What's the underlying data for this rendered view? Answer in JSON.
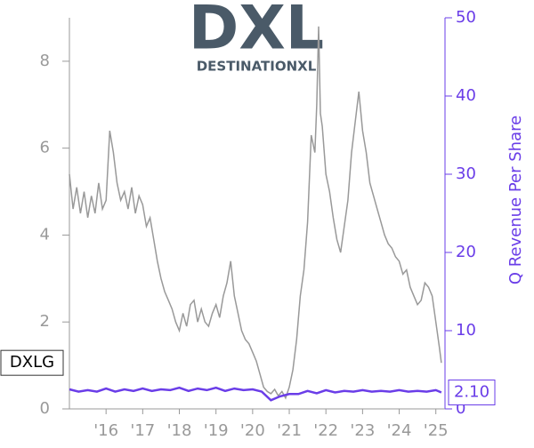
{
  "chart_data": {
    "type": "line",
    "logo": {
      "mark": "DXL",
      "name": "DESTINATIONXL"
    },
    "ticker": "DXLG",
    "y2label": "Q Revenue Per Share",
    "xlim": [
      2015.0,
      2025.25
    ],
    "xticks": [
      {
        "value": 2016,
        "label": "'16"
      },
      {
        "value": 2017,
        "label": "'17"
      },
      {
        "value": 2018,
        "label": "'18"
      },
      {
        "value": 2019,
        "label": "'19"
      },
      {
        "value": 2020,
        "label": "'20"
      },
      {
        "value": 2021,
        "label": "'21"
      },
      {
        "value": 2022,
        "label": "'22"
      },
      {
        "value": 2023,
        "label": "'23"
      },
      {
        "value": 2024,
        "label": "'24"
      },
      {
        "value": 2025,
        "label": "'25"
      }
    ],
    "ylim": [
      0,
      9
    ],
    "yticks": [
      0,
      2,
      4,
      6,
      8
    ],
    "y2lim": [
      0,
      50
    ],
    "y2ticks": [
      0,
      10,
      20,
      30,
      40,
      50
    ],
    "series": [
      {
        "color": "#999999",
        "x": [
          2015.0,
          2015.1,
          2015.2,
          2015.3,
          2015.4,
          2015.5,
          2015.6,
          2015.7,
          2015.8,
          2015.9,
          2016.0,
          2016.1,
          2016.2,
          2016.3,
          2016.4,
          2016.5,
          2016.6,
          2016.7,
          2016.8,
          2016.9,
          2017.0,
          2017.1,
          2017.2,
          2017.3,
          2017.4,
          2017.5,
          2017.6,
          2017.7,
          2017.8,
          2017.9,
          2018.0,
          2018.1,
          2018.2,
          2018.3,
          2018.4,
          2018.5,
          2018.6,
          2018.7,
          2018.8,
          2018.9,
          2019.0,
          2019.1,
          2019.2,
          2019.3,
          2019.4,
          2019.5,
          2019.6,
          2019.7,
          2019.8,
          2019.9,
          2020.0,
          2020.1,
          2020.2,
          2020.3,
          2020.4,
          2020.5,
          2020.6,
          2020.7,
          2020.8,
          2020.9,
          2021.0,
          2021.1,
          2021.2,
          2021.3,
          2021.4,
          2021.5,
          2021.6,
          2021.7,
          2021.75,
          2021.8,
          2021.85,
          2021.9,
          2022.0,
          2022.1,
          2022.2,
          2022.3,
          2022.4,
          2022.5,
          2022.6,
          2022.7,
          2022.8,
          2022.9,
          2023.0,
          2023.1,
          2023.2,
          2023.3,
          2023.4,
          2023.5,
          2023.6,
          2023.7,
          2023.8,
          2023.9,
          2024.0,
          2024.1,
          2024.2,
          2024.3,
          2024.4,
          2024.5,
          2024.6,
          2024.7,
          2024.8,
          2024.9,
          2025.0,
          2025.1,
          2025.15
        ],
        "values": [
          5.4,
          4.6,
          5.1,
          4.5,
          5.0,
          4.4,
          4.9,
          4.5,
          5.2,
          4.6,
          4.8,
          6.4,
          5.9,
          5.2,
          4.8,
          5.0,
          4.6,
          5.1,
          4.5,
          4.9,
          4.7,
          4.2,
          4.4,
          3.9,
          3.4,
          3.0,
          2.7,
          2.5,
          2.3,
          2.0,
          1.8,
          2.2,
          1.9,
          2.4,
          2.5,
          2.0,
          2.3,
          2.0,
          1.9,
          2.2,
          2.4,
          2.1,
          2.6,
          2.9,
          3.4,
          2.6,
          2.2,
          1.8,
          1.6,
          1.5,
          1.3,
          1.1,
          0.8,
          0.5,
          0.4,
          0.35,
          0.45,
          0.3,
          0.4,
          0.25,
          0.5,
          0.9,
          1.6,
          2.6,
          3.2,
          4.3,
          6.3,
          5.9,
          7.0,
          8.8,
          6.8,
          6.5,
          5.4,
          5.0,
          4.4,
          3.9,
          3.6,
          4.2,
          4.8,
          5.9,
          6.6,
          7.3,
          6.4,
          5.9,
          5.2,
          4.9,
          4.6,
          4.3,
          4.0,
          3.8,
          3.7,
          3.5,
          3.4,
          3.1,
          3.2,
          2.8,
          2.6,
          2.4,
          2.5,
          2.9,
          2.8,
          2.6,
          2.0,
          1.4,
          1.06
        ]
      },
      {
        "color": "#6a3de8",
        "axis": "y2",
        "x": [
          2015.0,
          2015.25,
          2015.5,
          2015.75,
          2016.0,
          2016.25,
          2016.5,
          2016.75,
          2017.0,
          2017.25,
          2017.5,
          2017.75,
          2018.0,
          2018.25,
          2018.5,
          2018.75,
          2019.0,
          2019.25,
          2019.5,
          2019.75,
          2020.0,
          2020.25,
          2020.5,
          2020.75,
          2021.0,
          2021.25,
          2021.5,
          2021.75,
          2022.0,
          2022.25,
          2022.5,
          2022.75,
          2023.0,
          2023.25,
          2023.5,
          2023.75,
          2024.0,
          2024.25,
          2024.5,
          2024.75,
          2025.0,
          2025.15
        ],
        "values": [
          2.5,
          2.2,
          2.4,
          2.2,
          2.6,
          2.2,
          2.5,
          2.3,
          2.6,
          2.3,
          2.5,
          2.4,
          2.7,
          2.3,
          2.6,
          2.4,
          2.7,
          2.3,
          2.6,
          2.4,
          2.5,
          2.2,
          1.1,
          1.6,
          1.9,
          1.9,
          2.3,
          2.0,
          2.4,
          2.1,
          2.3,
          2.2,
          2.4,
          2.2,
          2.3,
          2.2,
          2.4,
          2.2,
          2.3,
          2.2,
          2.4,
          2.1
        ],
        "value_labels": [
          null,
          null,
          null,
          null,
          null,
          null,
          null,
          null,
          null,
          null,
          null,
          null,
          null,
          null,
          null,
          null,
          null,
          null,
          null,
          null,
          null,
          null,
          null,
          null,
          null,
          null,
          null,
          null,
          null,
          null,
          null,
          null,
          null,
          null,
          null,
          null,
          null,
          null,
          null,
          null,
          null,
          "2.10"
        ]
      }
    ]
  }
}
